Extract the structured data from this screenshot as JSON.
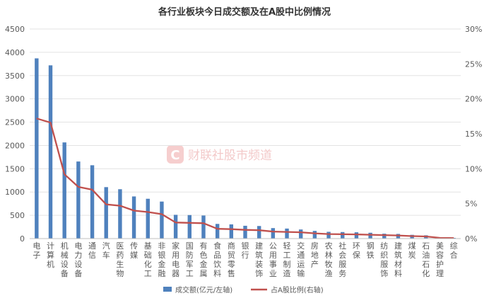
{
  "chart_data": {
    "type": "bar",
    "title": "各行业板块今日成交额及在A股中比例情况",
    "watermark": "财联社股市频道",
    "categories": [
      "电子",
      "计算机",
      "机械设备",
      "电力设备",
      "通信",
      "汽车",
      "医药生物",
      "传媒",
      "基础化工",
      "非银金融",
      "家用电器",
      "国防军工",
      "有色金属",
      "食品饮料",
      "商贸零售",
      "银行",
      "建筑装饰",
      "公用事业",
      "轻工制造",
      "交通运输",
      "房地产",
      "农林牧渔",
      "社会服务",
      "环保",
      "钢铁",
      "纺织服饰",
      "建筑材料",
      "煤炭",
      "石油石化",
      "美容护理",
      "综合"
    ],
    "left_axis": {
      "ylim": [
        0,
        4500
      ],
      "ticks": [
        "0",
        "500",
        "1000",
        "1500",
        "2000",
        "2500",
        "3000",
        "3500",
        "4000",
        "4500"
      ]
    },
    "right_axis": {
      "ylim": [
        0,
        30
      ],
      "ticks": [
        "0%",
        "5%",
        "10%",
        "15%",
        "20%",
        "25%",
        "30%"
      ]
    },
    "series": [
      {
        "name": "成交额(亿元/左轴)",
        "type": "bar",
        "axis": "left",
        "color": "#4f81bd",
        "values": [
          3870,
          3720,
          2065,
          1655,
          1575,
          1105,
          1060,
          905,
          855,
          795,
          510,
          505,
          495,
          315,
          305,
          275,
          270,
          225,
          215,
          195,
          165,
          145,
          140,
          135,
          125,
          105,
          100,
          80,
          70,
          25,
          15
        ]
      },
      {
        "name": "占A股比例(右轴)",
        "type": "line",
        "axis": "right",
        "color": "#c0504d",
        "values": [
          17.2,
          16.6,
          9.2,
          7.4,
          7.0,
          4.9,
          4.7,
          4.0,
          3.8,
          3.5,
          2.3,
          2.25,
          2.2,
          1.4,
          1.35,
          1.25,
          1.2,
          1.0,
          0.95,
          0.9,
          0.75,
          0.65,
          0.62,
          0.6,
          0.55,
          0.5,
          0.45,
          0.35,
          0.3,
          0.1,
          0.07
        ]
      }
    ],
    "legend_position": "bottom",
    "grid": true
  }
}
